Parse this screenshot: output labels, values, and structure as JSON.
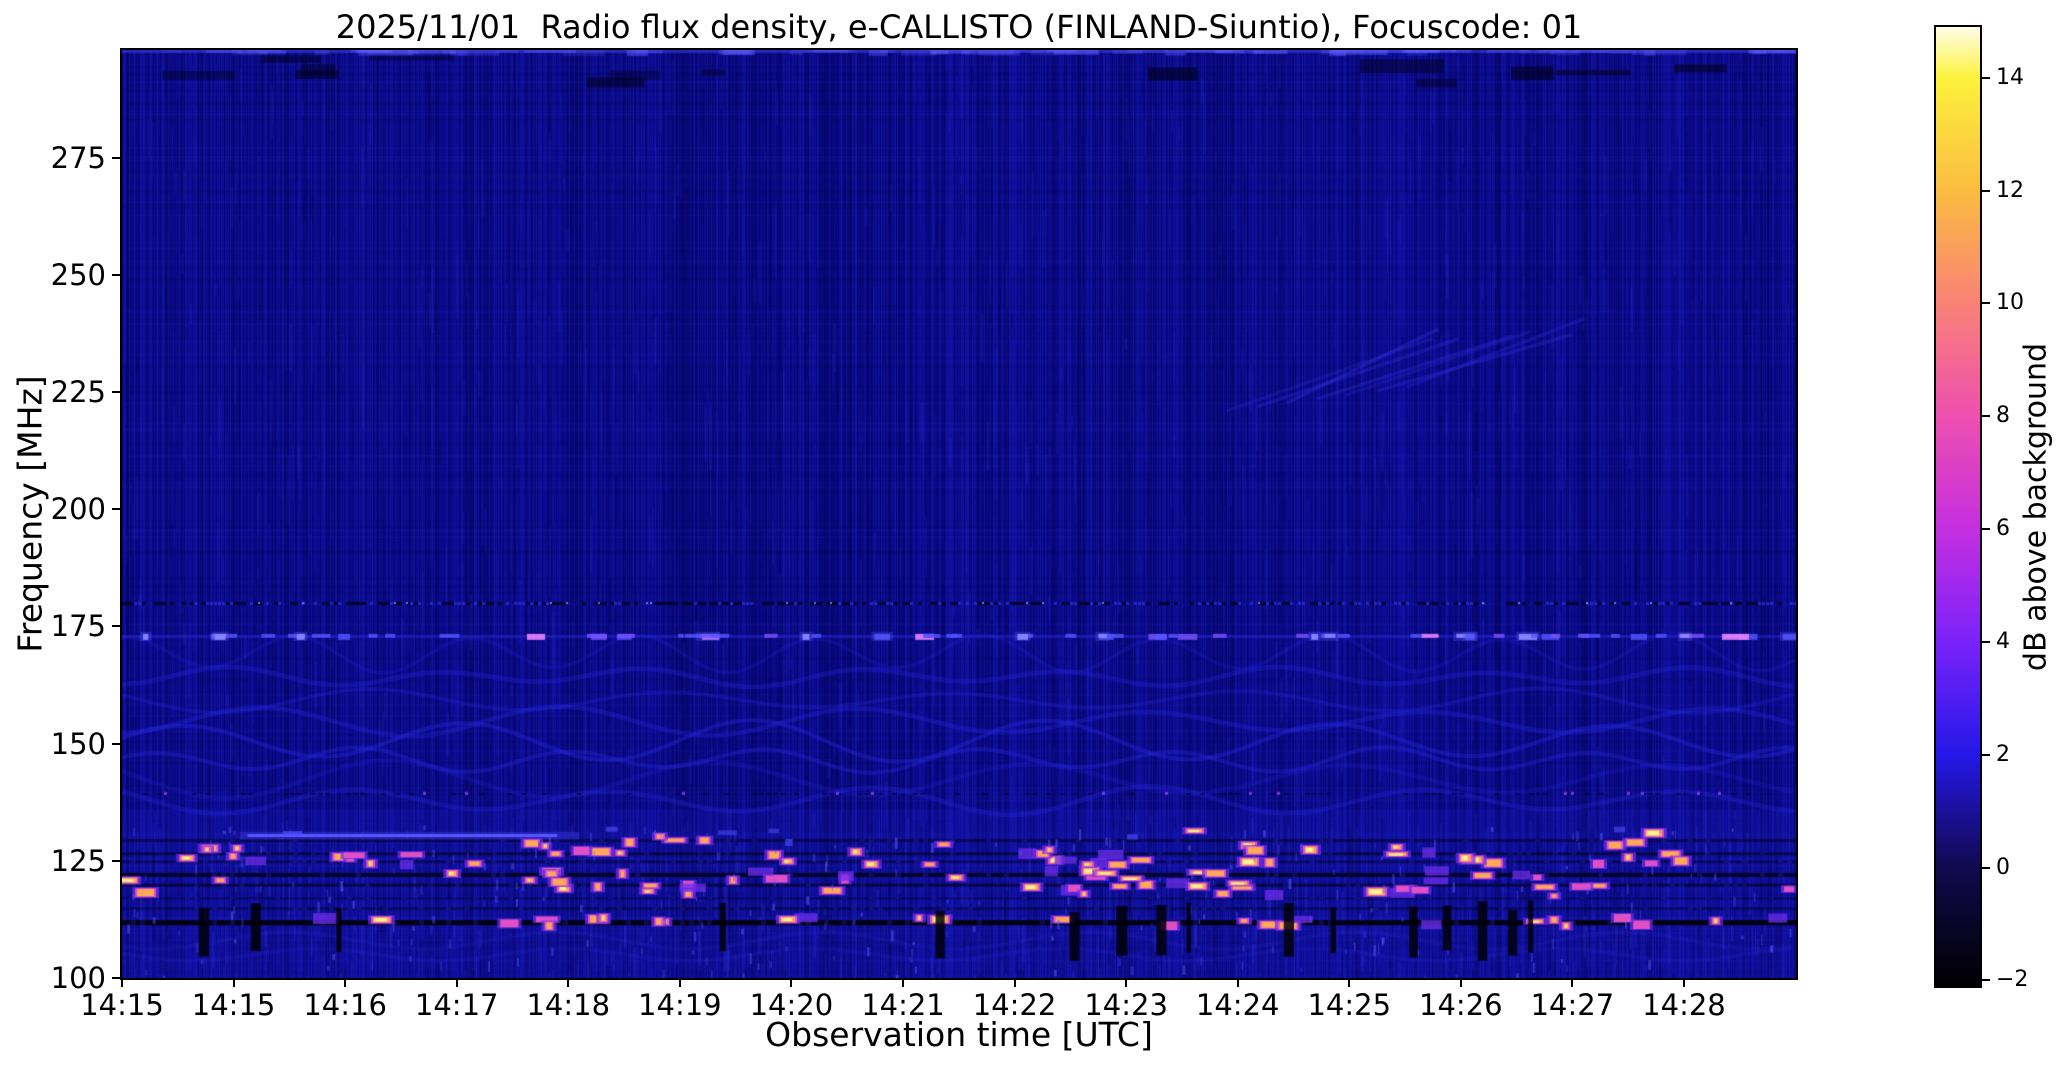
{
  "chart_data": {
    "type": "heatmap",
    "title": "2025/11/01  Radio flux density, e-CALLISTO (FINLAND-Siuntio), Focuscode: 01",
    "xlabel": "Observation time [UTC]",
    "ylabel": "Frequency [MHz]",
    "colorbar_label": "dB above background",
    "x_tick_labels": [
      "14:15",
      "14:15",
      "14:16",
      "14:17",
      "14:18",
      "14:19",
      "14:20",
      "14:21",
      "14:22",
      "14:23",
      "14:24",
      "14:25",
      "14:26",
      "14:27",
      "14:28"
    ],
    "y_tick_values": [
      275,
      250,
      225,
      200,
      175,
      150,
      125,
      100
    ],
    "ylim": [
      100,
      298
    ],
    "colorbar_ticks": [
      {
        "v": 14,
        "label": "14"
      },
      {
        "v": 12,
        "label": "12"
      },
      {
        "v": 10,
        "label": "10"
      },
      {
        "v": 8,
        "label": "8"
      },
      {
        "v": 6,
        "label": "6"
      },
      {
        "v": 4,
        "label": "4"
      },
      {
        "v": 2,
        "label": "2"
      },
      {
        "v": 0,
        "label": "0"
      },
      {
        "v": -2,
        "label": "−2"
      }
    ],
    "colorbar_range": [
      -2.1,
      14.9
    ],
    "colormap_stops": [
      {
        "v": -2.1,
        "c": "#000000"
      },
      {
        "v": 0,
        "c": "#11094e"
      },
      {
        "v": 2,
        "c": "#2418e8"
      },
      {
        "v": 4,
        "c": "#7a22fa"
      },
      {
        "v": 6,
        "c": "#c52fe0"
      },
      {
        "v": 8,
        "c": "#ee4faf"
      },
      {
        "v": 10,
        "c": "#f98276"
      },
      {
        "v": 12,
        "c": "#fbbc41"
      },
      {
        "v": 14,
        "c": "#fcf23c"
      },
      {
        "v": 14.9,
        "c": "#fffde8"
      }
    ],
    "features": {
      "description": "Quiet-sun radio spectrogram, dark blue background near 0-1 dB with narrowband terrestrial RFI",
      "background_level_db": 0.8,
      "rfi_speckle_line_mhz": 180,
      "rfi_blob_line_mhz": 173,
      "rfi_dash_line_mhz": 139.5,
      "bright_streak": {
        "freq_mhz": 130.5,
        "time_frac": [
          0.075,
          0.26
        ]
      },
      "dark_absorption_lines_mhz": [
        129.3,
        126.5,
        124.8,
        122,
        119.8,
        117,
        114.8,
        111.8
      ],
      "bright_speckle_rows_mhz": [
        131,
        128.5,
        126.8,
        125,
        122,
        120,
        118.3,
        112
      ],
      "speckle_band_mhz": [
        108,
        132
      ],
      "wavy_interference_band_mhz": [
        136,
        170
      ],
      "diagonal_ripple_patch": {
        "time_frac": [
          0.66,
          0.79
        ],
        "freq_mhz": [
          221,
          240
        ]
      },
      "black_dropout_band_mhz": [
        103,
        117
      ],
      "dropout_time_fracs": [
        0.046,
        0.077,
        0.128,
        0.357,
        0.486,
        0.566,
        0.594,
        0.618,
        0.636,
        0.694,
        0.722,
        0.769,
        0.789,
        0.81,
        0.828,
        0.84
      ]
    }
  }
}
